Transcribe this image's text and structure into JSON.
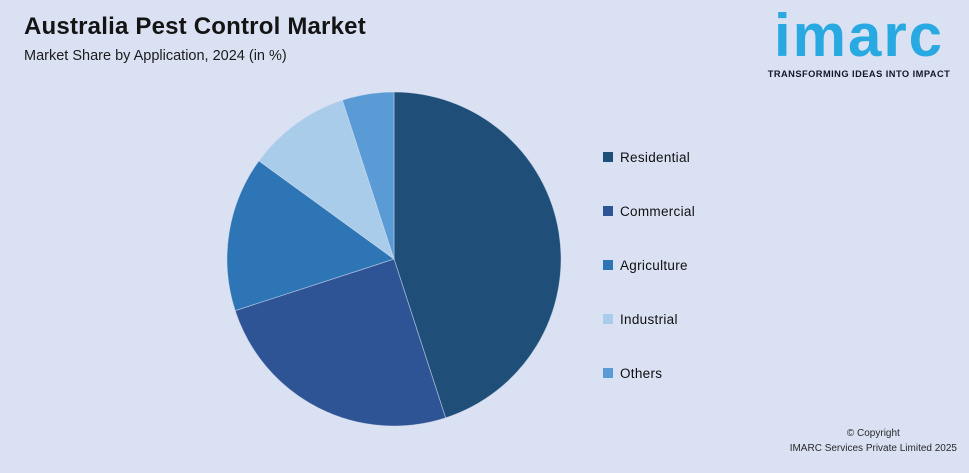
{
  "header": {
    "title": "Australia Pest Control Market",
    "subtitle": "Market Share by Application, 2024 (in %)"
  },
  "logo": {
    "brand": "imarc",
    "tagline": "TRANSFORMING IDEAS INTO IMPACT",
    "brand_color": "#29A9E1"
  },
  "chart_data": {
    "type": "pie",
    "title": "Australia Pest Control Market",
    "subtitle": "Market Share by Application, 2024 (in %)",
    "unit": "%",
    "labels": [
      "Residential",
      "Commercial",
      "Agriculture",
      "Industrial",
      "Others"
    ],
    "values": [
      45,
      25,
      15,
      10,
      5
    ],
    "colors": [
      "#1F4F78",
      "#2F5496",
      "#2E75B6",
      "#A9CCEB",
      "#5B9BD5"
    ],
    "legend_position": "right",
    "start_angle_deg": 0,
    "direction": "clockwise",
    "background_color": "#D9E1F3"
  },
  "footer": {
    "copyright_line1": "© Copyright",
    "copyright_line2": "IMARC Services Private Limited 2025"
  }
}
